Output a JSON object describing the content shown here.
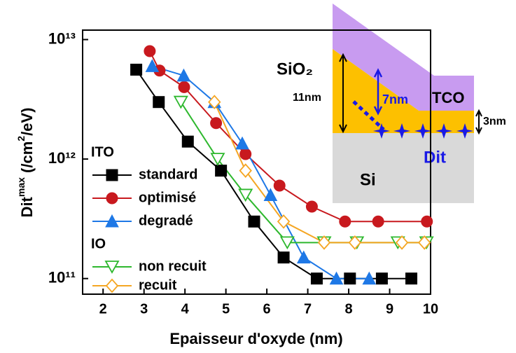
{
  "chart_data": {
    "type": "line",
    "x_label": "Epaisseur d'oxyde (nm)",
    "y_label": {
      "base": "Dit",
      "sup": "max",
      "unit": " (/cm",
      "unit_sup": "2",
      "unit_end": "/eV)"
    },
    "xlim": [
      1.5,
      10
    ],
    "ylim": [
      74000000000,
      12000000000000
    ],
    "log_y": true,
    "xticks": [
      2,
      3,
      4,
      5,
      6,
      7,
      8,
      9,
      10
    ],
    "yticks": [
      {
        "value": 100000000000,
        "label": "10¹¹"
      },
      {
        "value": 1000000000000,
        "label": "10¹²"
      },
      {
        "value": 10000000000000,
        "label": "10¹³"
      }
    ],
    "legend_groups": [
      "ITO",
      "IO"
    ],
    "series": [
      {
        "name": "standard",
        "group": 0,
        "color": "#000000",
        "marker": "square",
        "x": [
          2.81,
          3.36,
          4.07,
          4.88,
          5.69,
          6.41,
          7.22,
          8.03,
          8.81,
          9.53
        ],
        "values": [
          5600000000000,
          3000000000000,
          1400000000000,
          800000000000,
          300000000000,
          150000000000,
          100000000000,
          100000000000,
          100000000000,
          100000000000
        ]
      },
      {
        "name": "optimisé",
        "group": 0,
        "color": "#c8191e",
        "marker": "circle",
        "x": [
          3.14,
          3.38,
          3.98,
          4.76,
          5.48,
          6.31,
          7.1,
          7.91,
          8.72,
          9.91
        ],
        "values": [
          8000000000000,
          5500000000000,
          4000000000000,
          2000000000000,
          1100000000000,
          600000000000,
          400000000000,
          300000000000,
          300000000000,
          300000000000
        ]
      },
      {
        "name": "degradé",
        "group": 0,
        "color": "#1e78e6",
        "marker": "triangle",
        "x": [
          3.2,
          3.97,
          4.72,
          5.4,
          6.09,
          6.9,
          7.7,
          8.5
        ],
        "values": [
          6000000000000,
          5000000000000,
          3000000000000,
          1350000000000,
          500000000000,
          150000000000,
          100000000000,
          100000000000
        ]
      },
      {
        "name": "non recuit",
        "group": 1,
        "color": "#2eb82e",
        "marker": "triangle-down",
        "x": [
          3.9,
          4.8,
          5.48,
          6.5,
          7.4,
          8.2,
          9.2,
          9.9
        ],
        "values": [
          3000000000000,
          1000000000000,
          500000000000,
          200000000000,
          200000000000,
          200000000000,
          200000000000,
          200000000000
        ]
      },
      {
        "name": "recuit",
        "group": 1,
        "color": "#f5a623",
        "marker": "diamond",
        "x": [
          4.72,
          5.48,
          6.41,
          7.4,
          8.15,
          9.3,
          9.85
        ],
        "values": [
          3000000000000,
          800000000000,
          300000000000,
          200000000000,
          200000000000,
          200000000000,
          200000000000
        ]
      }
    ],
    "inset": {
      "sio2": "SiO₂",
      "thick": "11nm",
      "thin": "7nm",
      "tco": "TCO",
      "gap": "3nm",
      "dit": "Dit",
      "si": "Si"
    }
  }
}
